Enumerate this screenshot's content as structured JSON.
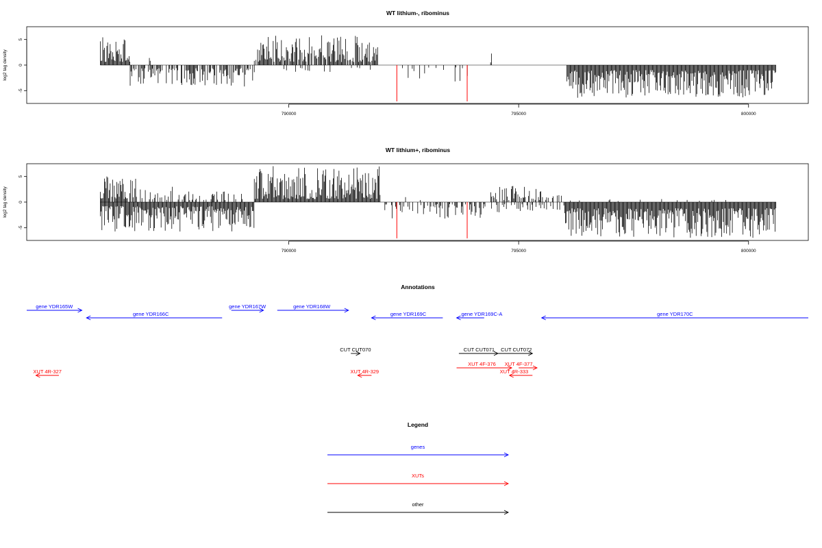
{
  "colors": {
    "gene": "#0000ff",
    "xut": "#ff0000",
    "other": "#000000",
    "highlight": "#ff0000"
  },
  "chart_data": [
    {
      "type": "bar",
      "title": "WT lithium-, ribominus",
      "ylabel": "log2 tag density",
      "xlim": [
        784300,
        801300
      ],
      "ylim": [
        -7.5,
        7.5
      ],
      "x_ticks": [
        790000,
        795000,
        800000
      ],
      "y_ticks": [
        5,
        0,
        -5
      ],
      "x_tick_labels": [
        "790000",
        "795000",
        "800000"
      ],
      "y_tick_labels": [
        "5",
        "0",
        "-5"
      ],
      "grid": false,
      "data_range": [
        785900,
        800600
      ],
      "highlight_bars": [
        {
          "x": 792350,
          "y": -7.1
        },
        {
          "x": 793880,
          "y": -7.1
        }
      ],
      "segments": [
        {
          "from": 785900,
          "to": 786550,
          "sign": 1,
          "min": 0.6,
          "max": 5.5,
          "density": 1.0
        },
        {
          "from": 786550,
          "to": 789250,
          "sign": -1,
          "min": 0.6,
          "max": 4.2,
          "density": 0.65
        },
        {
          "from": 786950,
          "to": 787050,
          "sign": 1,
          "min": 0.8,
          "max": 1.6,
          "density": 0.3
        },
        {
          "from": 789250,
          "to": 791950,
          "sign": 1,
          "min": 0.6,
          "max": 6.0,
          "density": 0.85
        },
        {
          "from": 789700,
          "to": 791850,
          "sign": -1,
          "min": 0.4,
          "max": 1.4,
          "density": 0.12
        },
        {
          "from": 792400,
          "to": 794050,
          "sign": -1,
          "min": 0.4,
          "max": 3.2,
          "density": 0.12
        },
        {
          "from": 794300,
          "to": 794550,
          "sign": 1,
          "min": 0.5,
          "max": 2.8,
          "density": 0.25
        },
        {
          "from": 795700,
          "to": 796050,
          "sign": -1,
          "min": 0.5,
          "max": 1.3,
          "density": 0.1
        },
        {
          "from": 796050,
          "to": 800600,
          "sign": -1,
          "min": 1.0,
          "max": 6.4,
          "density": 1.0
        }
      ]
    },
    {
      "type": "bar",
      "title": "WT lithium+, ribominus",
      "ylabel": "log2 tag density",
      "xlim": [
        784300,
        801300
      ],
      "ylim": [
        -7.5,
        7.5
      ],
      "x_ticks": [
        790000,
        795000,
        800000
      ],
      "y_ticks": [
        5,
        0,
        -5
      ],
      "x_tick_labels": [
        "790000",
        "795000",
        "800000"
      ],
      "y_tick_labels": [
        "5",
        "0",
        "-5"
      ],
      "grid": false,
      "data_range": [
        785900,
        800600
      ],
      "highlight_bars": [
        {
          "x": 792350,
          "y": -7.1
        },
        {
          "x": 793880,
          "y": -7.1
        }
      ],
      "segments": [
        {
          "from": 785900,
          "to": 786700,
          "sign": 1,
          "min": 0.6,
          "max": 5.2,
          "density": 0.9
        },
        {
          "from": 785900,
          "to": 789250,
          "sign": -1,
          "min": 0.8,
          "max": 5.8,
          "density": 1.0
        },
        {
          "from": 786700,
          "to": 789200,
          "sign": 1,
          "min": 0.4,
          "max": 3.0,
          "density": 0.35
        },
        {
          "from": 789250,
          "to": 792000,
          "sign": 1,
          "min": 0.6,
          "max": 7.1,
          "density": 1.0
        },
        {
          "from": 792000,
          "to": 794250,
          "sign": -1,
          "min": 0.4,
          "max": 3.4,
          "density": 0.45
        },
        {
          "from": 792200,
          "to": 794250,
          "sign": 1,
          "min": 0.3,
          "max": 1.2,
          "density": 0.08
        },
        {
          "from": 794250,
          "to": 795500,
          "sign": 1,
          "min": 0.4,
          "max": 3.3,
          "density": 0.5
        },
        {
          "from": 794250,
          "to": 795500,
          "sign": -1,
          "min": 0.4,
          "max": 2.2,
          "density": 0.35
        },
        {
          "from": 795500,
          "to": 796000,
          "sign": 1,
          "min": 0.3,
          "max": 1.5,
          "density": 0.3
        },
        {
          "from": 795500,
          "to": 796000,
          "sign": -1,
          "min": 0.4,
          "max": 1.8,
          "density": 0.35
        },
        {
          "from": 796000,
          "to": 800600,
          "sign": -1,
          "min": 1.2,
          "max": 7.0,
          "density": 1.0
        },
        {
          "from": 796000,
          "to": 800600,
          "sign": 1,
          "min": 0.2,
          "max": 0.6,
          "density": 0.05
        }
      ]
    }
  ],
  "annotations": {
    "title": "Annotations",
    "features": [
      {
        "label": "gene YDR165W",
        "kind": "gene",
        "start": 784300,
        "end": 785500,
        "strand": "+",
        "row": 0,
        "label_x": 784900
      },
      {
        "label": "gene YDR166C",
        "kind": "gene",
        "start": 785600,
        "end": 788550,
        "strand": "-",
        "row": 1,
        "label_x": 787000
      },
      {
        "label": "gene YDR167W",
        "kind": "gene",
        "start": 788750,
        "end": 789450,
        "strand": "+",
        "row": 0,
        "label_x": 789100
      },
      {
        "label": "gene YDR168W",
        "kind": "gene",
        "start": 789750,
        "end": 791300,
        "strand": "+",
        "row": 0,
        "label_x": 790500
      },
      {
        "label": "gene YDR169C",
        "kind": "gene",
        "start": 791800,
        "end": 793350,
        "strand": "-",
        "row": 1,
        "label_x": 792600
      },
      {
        "label": "gene YDR169C-A",
        "kind": "gene",
        "start": 793650,
        "end": 794250,
        "strand": "-",
        "row": 1,
        "label_x": 794200
      },
      {
        "label": "gene YDR170C",
        "kind": "gene",
        "start": 795500,
        "end": 801300,
        "strand": "-",
        "row": 1,
        "label_x": 798400
      },
      {
        "label": "CUT CUT070",
        "kind": "other",
        "start": 791350,
        "end": 791550,
        "strand": "+",
        "row": 2,
        "label_x": 791450
      },
      {
        "label": "CUT CUT071",
        "kind": "other",
        "start": 793700,
        "end": 794550,
        "strand": "+",
        "row": 2,
        "label_x": 794140
      },
      {
        "label": "CUT CUT072",
        "kind": "other",
        "start": 794550,
        "end": 795300,
        "strand": "+",
        "row": 2,
        "label_x": 794950
      },
      {
        "label": "XUT 4R-327",
        "kind": "xut",
        "start": 784500,
        "end": 785000,
        "strand": "-",
        "row": 4,
        "label_x": 784750
      },
      {
        "label": "XUT 4R-329",
        "kind": "xut",
        "start": 791500,
        "end": 791800,
        "strand": "-",
        "row": 4,
        "label_x": 791650
      },
      {
        "label": "XUT 4F-376",
        "kind": "xut",
        "start": 793650,
        "end": 794850,
        "strand": "+",
        "row": 3,
        "label_x": 794200
      },
      {
        "label": "XUT 4F-377",
        "kind": "xut",
        "start": 795000,
        "end": 795400,
        "strand": "+",
        "row": 3,
        "label_x": 795000
      },
      {
        "label": "XUT 4R-333",
        "kind": "xut",
        "start": 794800,
        "end": 795300,
        "strand": "-",
        "row": 4,
        "label_x": 794900
      }
    ]
  },
  "legend": {
    "title": "Legend",
    "items": [
      {
        "label": "genes",
        "kind": "gene"
      },
      {
        "label": "XUTs",
        "kind": "xut"
      },
      {
        "label": "other",
        "kind": "other"
      }
    ]
  }
}
